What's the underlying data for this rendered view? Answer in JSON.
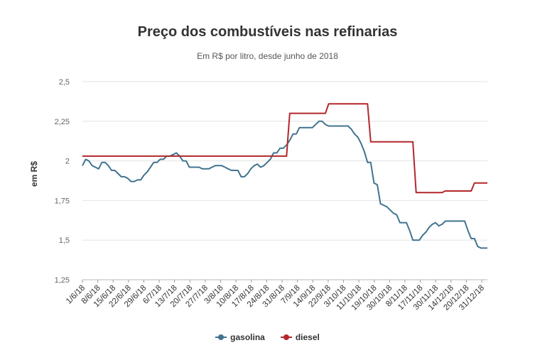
{
  "chart_data": {
    "type": "line",
    "title": "Preço dos combustíveis nas refinarias",
    "subtitle": "Em R$ por litro, desde junho de 2018",
    "ylabel": "em R$",
    "ylim": [
      1.25,
      2.5
    ],
    "y_ticks": [
      "1,25",
      "1,5",
      "1,75",
      "2",
      "2,25",
      "2,5"
    ],
    "y_tick_values": [
      1.25,
      1.5,
      1.75,
      2.0,
      2.25,
      2.5
    ],
    "x_tick_labels": [
      "1/6/18",
      "8/6/18",
      "15/6/18",
      "22/6/18",
      "29/6/18",
      "6/7/18",
      "13/7/18",
      "20/7/18",
      "27/7/18",
      "3/8/18",
      "10/8/18",
      "17/8/18",
      "24/8/18",
      "31/8/18",
      "7/9/18",
      "14/9/18",
      "22/9/18",
      "3/10/18",
      "11/10/18",
      "19/10/18",
      "30/10/18",
      "8/11/18",
      "17/11/18",
      "30/11/18",
      "14/12/18",
      "20/12/18",
      "31/12/18"
    ],
    "grid": true,
    "legend_position": "bottom",
    "series": [
      {
        "name": "gasolina",
        "color": "#41738f",
        "values": [
          1.97,
          2.01,
          2.0,
          1.97,
          1.96,
          1.95,
          1.99,
          1.99,
          1.97,
          1.94,
          1.94,
          1.92,
          1.9,
          1.9,
          1.89,
          1.87,
          1.87,
          1.88,
          1.88,
          1.91,
          1.93,
          1.96,
          1.99,
          1.99,
          2.01,
          2.01,
          2.03,
          2.03,
          2.04,
          2.05,
          2.03,
          2.0,
          2.0,
          1.96,
          1.96,
          1.96,
          1.96,
          1.95,
          1.95,
          1.95,
          1.96,
          1.97,
          1.97,
          1.97,
          1.96,
          1.95,
          1.94,
          1.94,
          1.94,
          1.9,
          1.9,
          1.92,
          1.95,
          1.97,
          1.98,
          1.96,
          1.97,
          1.99,
          2.01,
          2.05,
          2.05,
          2.08,
          2.08,
          2.1,
          2.13,
          2.17,
          2.17,
          2.21,
          2.21,
          2.21,
          2.21,
          2.21,
          2.23,
          2.25,
          2.25,
          2.23,
          2.22,
          2.22,
          2.22,
          2.22,
          2.22,
          2.22,
          2.22,
          2.2,
          2.17,
          2.15,
          2.11,
          2.06,
          1.99,
          1.99,
          1.86,
          1.85,
          1.73,
          1.72,
          1.71,
          1.69,
          1.67,
          1.66,
          1.61,
          1.61,
          1.61,
          1.56,
          1.5,
          1.5,
          1.5,
          1.53,
          1.55,
          1.58,
          1.6,
          1.61,
          1.59,
          1.6,
          1.62,
          1.62,
          1.62,
          1.62,
          1.62,
          1.62,
          1.62,
          1.56,
          1.51,
          1.51,
          1.46,
          1.45,
          1.45,
          1.45
        ]
      },
      {
        "name": "diesel",
        "color": "#b3272b",
        "values": [
          2.03,
          2.03,
          2.03,
          2.03,
          2.03,
          2.03,
          2.03,
          2.03,
          2.03,
          2.03,
          2.03,
          2.03,
          2.03,
          2.03,
          2.03,
          2.03,
          2.03,
          2.03,
          2.03,
          2.03,
          2.03,
          2.03,
          2.03,
          2.03,
          2.03,
          2.03,
          2.03,
          2.03,
          2.03,
          2.03,
          2.03,
          2.03,
          2.03,
          2.03,
          2.03,
          2.03,
          2.03,
          2.03,
          2.03,
          2.03,
          2.03,
          2.03,
          2.03,
          2.03,
          2.03,
          2.03,
          2.03,
          2.03,
          2.03,
          2.03,
          2.03,
          2.03,
          2.03,
          2.03,
          2.03,
          2.03,
          2.03,
          2.03,
          2.03,
          2.03,
          2.03,
          2.03,
          2.03,
          2.03,
          2.3,
          2.3,
          2.3,
          2.3,
          2.3,
          2.3,
          2.3,
          2.3,
          2.3,
          2.3,
          2.3,
          2.3,
          2.36,
          2.36,
          2.36,
          2.36,
          2.36,
          2.36,
          2.36,
          2.36,
          2.36,
          2.36,
          2.36,
          2.36,
          2.36,
          2.12,
          2.12,
          2.12,
          2.12,
          2.12,
          2.12,
          2.12,
          2.12,
          2.12,
          2.12,
          2.12,
          2.12,
          2.12,
          2.12,
          1.8,
          1.8,
          1.8,
          1.8,
          1.8,
          1.8,
          1.8,
          1.8,
          1.8,
          1.81,
          1.81,
          1.81,
          1.81,
          1.81,
          1.81,
          1.81,
          1.81,
          1.81,
          1.86,
          1.86,
          1.86,
          1.86,
          1.86
        ]
      }
    ]
  }
}
